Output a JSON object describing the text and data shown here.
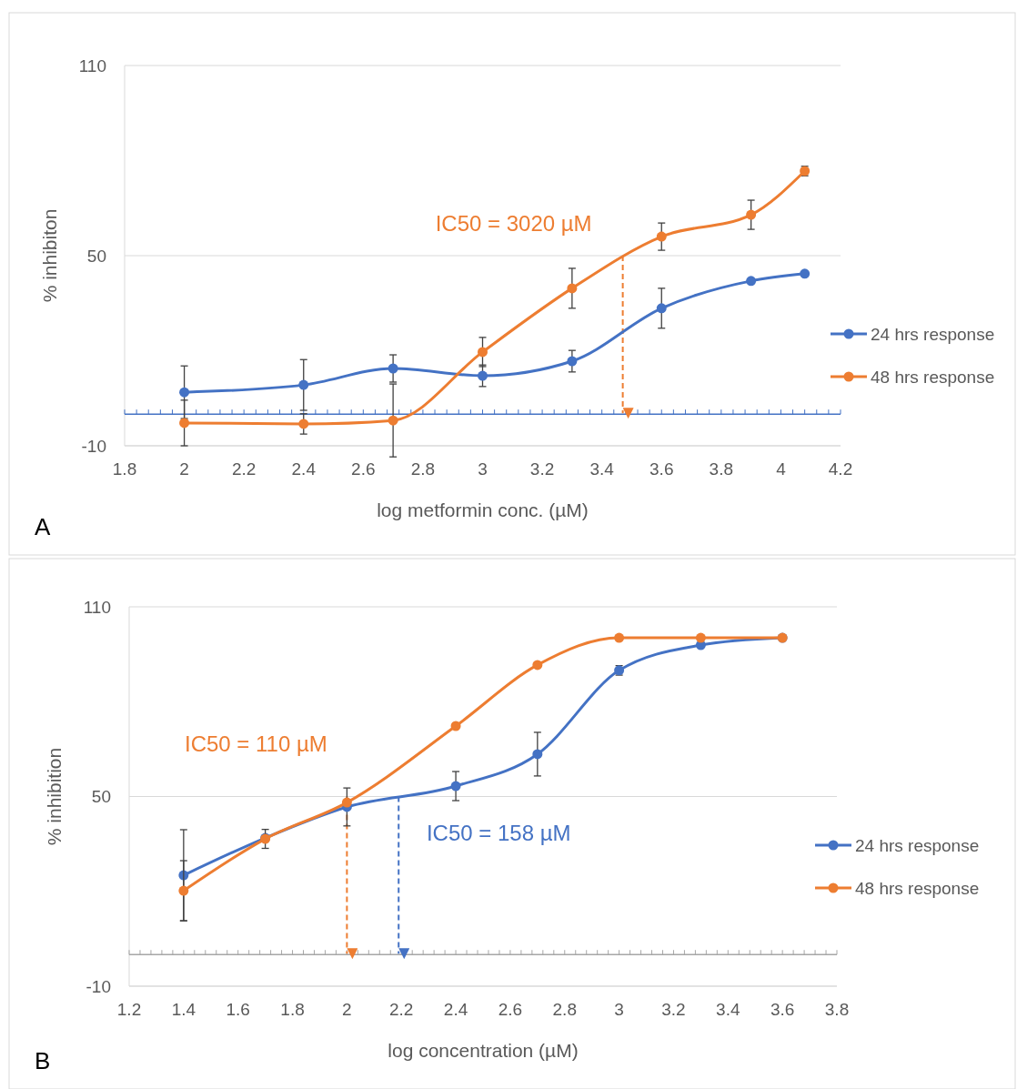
{
  "chart_data": [
    {
      "type": "line",
      "xlabel": "log metformin conc. (µM)",
      "ylabel": "% inhibiton",
      "x": [
        2,
        2.4,
        2.7,
        3,
        3.3,
        3.6,
        3.9,
        4.08
      ],
      "xlim": [
        1.8,
        4.2
      ],
      "xticks": [
        1.8,
        2,
        2.2,
        2.4,
        2.6,
        2.8,
        3,
        3.2,
        3.4,
        3.6,
        3.8,
        4,
        4.2
      ],
      "ylim": [
        -10,
        110
      ],
      "yticks": [
        -10,
        50,
        110
      ],
      "grid": "y",
      "legend": "right",
      "marker": "circle",
      "line_style": "solid",
      "series": [
        {
          "name": "24 hrs response",
          "color": "#4472c4",
          "values": [
            6.9,
            9.2,
            14.4,
            12.1,
            16.7,
            33.4,
            42,
            44.3
          ],
          "errors": [
            8.3,
            8,
            4.3,
            3.4,
            3.4,
            6.3,
            null,
            null
          ]
        },
        {
          "name": "48 hrs response",
          "color": "#ed7d31",
          "values": [
            -2.8,
            -3.1,
            -2,
            19.6,
            39.7,
            56,
            62.9,
            76.7
          ],
          "errors": [
            7.2,
            3.2,
            11.5,
            4.6,
            6.3,
            4.3,
            4.6,
            1.5
          ]
        }
      ],
      "ref_lines": [
        {
          "axis": "y",
          "value": 0,
          "color": "#4472c4",
          "line_style": "solid"
        },
        {
          "axis": "x",
          "value": 3.47,
          "color": "#ed7d31",
          "line_style": "dashed"
        }
      ],
      "annotations": [
        {
          "text": "IC50 = 3020 µM",
          "x": 3.47,
          "y": 50
        },
        "A"
      ]
    },
    {
      "type": "line",
      "xlabel": "log concentration (µM)",
      "ylabel": "% inhibition",
      "x": [
        1.4,
        1.7,
        2,
        2.4,
        2.7,
        3,
        3.3,
        3.6
      ],
      "xlim": [
        1.2,
        3.8
      ],
      "xticks": [
        1.2,
        1.4,
        1.6,
        1.8,
        2,
        2.2,
        2.4,
        2.6,
        2.8,
        3,
        3.2,
        3.4,
        3.6,
        3.8
      ],
      "ylim": [
        -10,
        110
      ],
      "yticks": [
        -10,
        50,
        110
      ],
      "grid": "y",
      "legend": "right",
      "marker": "circle",
      "line_style": "solid",
      "series": [
        {
          "name": "24 hrs response",
          "color": "#4472c4",
          "values": [
            25.1,
            36.9,
            46.7,
            53.3,
            63.4,
            89.9,
            97.9,
            100.2
          ],
          "errors": [
            14.4,
            null,
            6,
            4.6,
            6.9,
            1.5,
            null,
            null
          ]
        },
        {
          "name": "48 hrs response",
          "color": "#ed7d31",
          "values": [
            20.2,
            36.6,
            48.1,
            72.3,
            91.6,
            100.2,
            100.2,
            100.2
          ],
          "errors": [
            9.5,
            3,
            null,
            null,
            null,
            null,
            null,
            null
          ]
        }
      ],
      "ref_lines": [
        {
          "axis": "y",
          "value": 0,
          "color": "#a6a6a6",
          "line_style": "solid"
        },
        {
          "axis": "x",
          "value": 2,
          "color": "#ed7d31",
          "line_style": "dashed"
        },
        {
          "axis": "x",
          "value": 2.19,
          "color": "#4472c4",
          "line_style": "dashed"
        }
      ],
      "annotations": [
        {
          "text": "IC50 = 110 µM",
          "x": 2,
          "y": 50
        },
        {
          "text": "IC50 = 158 µM",
          "x": 2.19,
          "y": 50
        },
        "B"
      ]
    }
  ]
}
